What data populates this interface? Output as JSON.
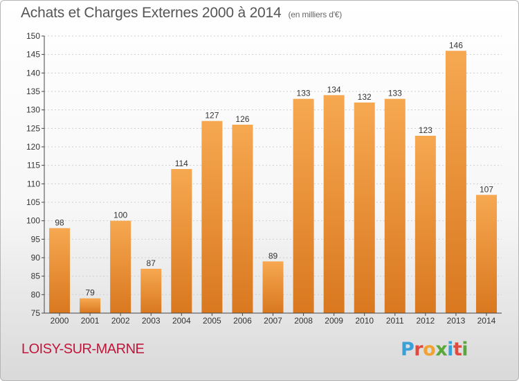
{
  "header": {
    "title": "Achats et Charges Externes 2000 à 2014",
    "subtitle": "(en milliers d'€)"
  },
  "footer": {
    "commune": "LOISY-SUR-MARNE",
    "logo_text": "Proxiti",
    "logo_colors": [
      "#3aa0d8",
      "#e04a3f",
      "#f3a12f",
      "#5aa83c",
      "#3aa0d8",
      "#e04a3f",
      "#5aa83c"
    ]
  },
  "colors": {
    "bar_light": "#f6a851",
    "bar_dark": "#d9781f",
    "axis": "#444444",
    "grid": "#cfcfcf",
    "text": "#333333"
  },
  "chart_data": {
    "type": "bar",
    "title": "Achats et Charges Externes 2000 à 2014",
    "subtitle": "(en milliers d'€)",
    "xlabel": "",
    "ylabel": "",
    "categories": [
      "2000",
      "2001",
      "2002",
      "2003",
      "2004",
      "2005",
      "2006",
      "2007",
      "2008",
      "2009",
      "2010",
      "2011",
      "2012",
      "2013",
      "2014"
    ],
    "values": [
      98,
      79,
      100,
      87,
      114,
      127,
      126,
      89,
      133,
      134,
      132,
      133,
      123,
      146,
      107
    ],
    "ylim": [
      75,
      150
    ],
    "yticks": [
      75,
      80,
      85,
      90,
      95,
      100,
      105,
      110,
      115,
      120,
      125,
      130,
      135,
      140,
      145,
      150
    ],
    "grid": true,
    "legend": "none"
  }
}
